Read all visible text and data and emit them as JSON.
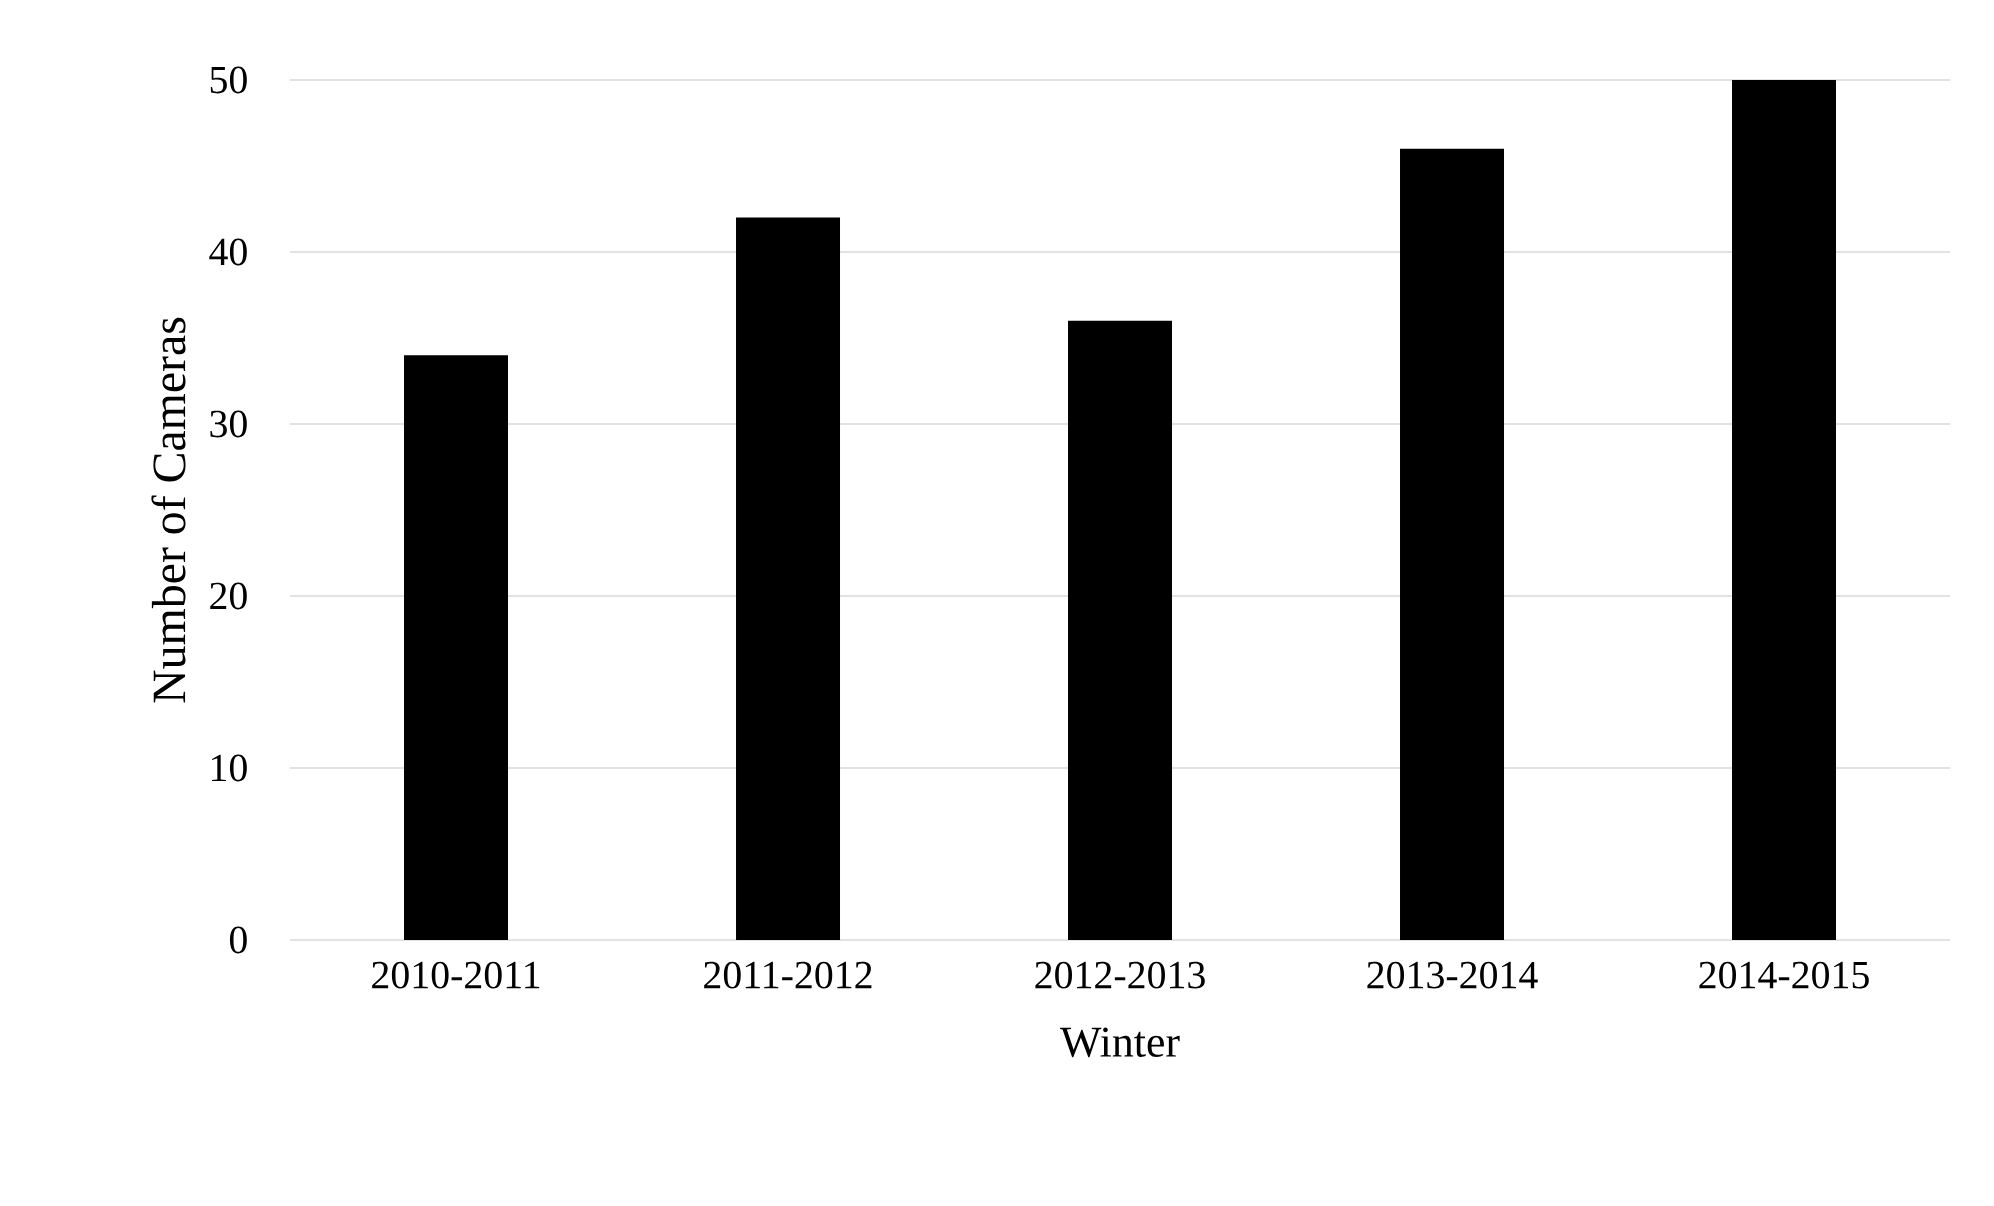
{
  "chart_data": {
    "type": "bar",
    "xlabel": "Winter",
    "ylabel": "Number of Cameras",
    "categories": [
      "2010-2011",
      "2011-2012",
      "2012-2013",
      "2013-2014",
      "2014-2015"
    ],
    "values": [
      34,
      42,
      36,
      46,
      50
    ],
    "color": "#000000",
    "ylim": [
      0,
      50
    ],
    "yticks": [
      0,
      10,
      20,
      30,
      40,
      50
    ],
    "grid": "y"
  }
}
